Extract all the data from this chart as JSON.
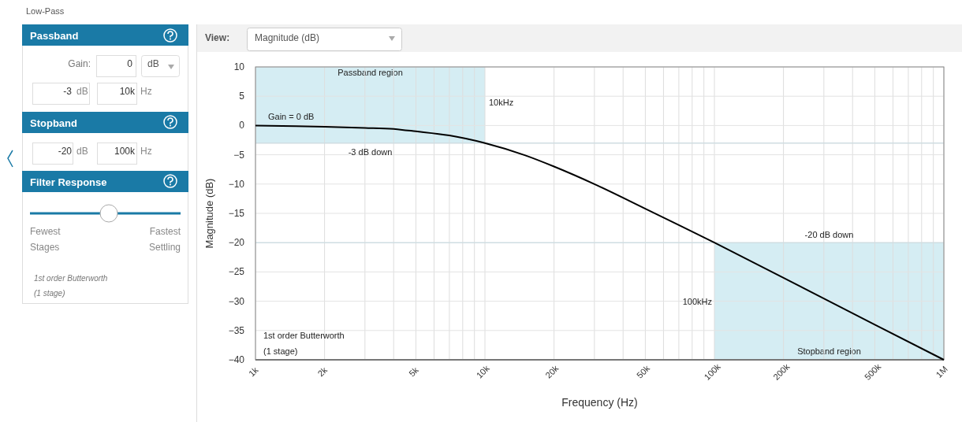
{
  "chart_data": {
    "type": "line",
    "xlabel": "Frequency (Hz)",
    "ylabel": "Magnitude (dB)",
    "log": "x",
    "grid": true,
    "marker": "none",
    "line_style": "solid",
    "x": [
      1000,
      1500,
      2000,
      3000,
      4000,
      5000,
      7000,
      10000,
      15000,
      20000,
      30000,
      50000,
      70000,
      100000,
      200000,
      500000,
      1000000
    ],
    "series": [
      {
        "color": "#000000",
        "values": [
          0,
          -0.1,
          -0.2,
          -0.4,
          -0.6,
          -1,
          -1.7,
          -3,
          -5.1,
          -7,
          -10,
          -14.2,
          -17,
          -20,
          -26,
          -34,
          -40
        ]
      }
    ],
    "xlim": [
      1000,
      1000000
    ],
    "ylim": [
      -40,
      10
    ],
    "xticks": [
      {
        "value": 1000,
        "label": "1k"
      },
      {
        "value": 2000,
        "label": "2k"
      },
      {
        "value": 3000,
        "label": null
      },
      {
        "value": 4000,
        "label": null
      },
      {
        "value": 5000,
        "label": "5k"
      },
      {
        "value": 6000,
        "label": null
      },
      {
        "value": 7000,
        "label": null
      },
      {
        "value": 8000,
        "label": null
      },
      {
        "value": 9000,
        "label": null
      },
      {
        "value": 10000,
        "label": "10k"
      },
      {
        "value": 20000,
        "label": "20k"
      },
      {
        "value": 30000,
        "label": null
      },
      {
        "value": 40000,
        "label": null
      },
      {
        "value": 50000,
        "label": "50k"
      },
      {
        "value": 60000,
        "label": null
      },
      {
        "value": 70000,
        "label": null
      },
      {
        "value": 80000,
        "label": null
      },
      {
        "value": 90000,
        "label": null
      },
      {
        "value": 100000,
        "label": "100k"
      },
      {
        "value": 200000,
        "label": "200k"
      },
      {
        "value": 300000,
        "label": null
      },
      {
        "value": 400000,
        "label": null
      },
      {
        "value": 500000,
        "label": "500k"
      },
      {
        "value": 600000,
        "label": null
      },
      {
        "value": 700000,
        "label": null
      },
      {
        "value": 800000,
        "label": null
      },
      {
        "value": 900000,
        "label": null
      },
      {
        "value": 1000000,
        "label": "1M"
      }
    ],
    "yticks": [
      10,
      5,
      0,
      {
        "value": -5,
        "label": "−5"
      },
      {
        "value": -10,
        "label": "−10"
      },
      {
        "value": -15,
        "label": "−15"
      },
      {
        "value": -20,
        "label": "−20"
      },
      {
        "value": -25,
        "label": "−25"
      },
      {
        "value": -30,
        "label": "−30"
      },
      {
        "value": -35,
        "label": "−35"
      },
      {
        "value": -40,
        "label": "−40"
      }
    ],
    "bands": [
      {
        "axis": "x",
        "from": 1000,
        "to": 10000,
        "label": "Passband region",
        "color": "#d5edf3"
      },
      {
        "axis": "x",
        "from": 100000,
        "to": 1000000,
        "label": "Stopband region",
        "color": "#d5edf3"
      }
    ],
    "ref_lines": [
      {
        "axis": "y",
        "value": -3,
        "label": "-3 dB down"
      },
      {
        "axis": "y",
        "value": -20,
        "label": "-20 dB down"
      }
    ],
    "annotations": [
      {
        "text": "Gain = 0 dB",
        "x": 1000,
        "y": 0
      },
      {
        "text": "10kHz",
        "x": 10000,
        "y": 4
      },
      {
        "text": "100kHz",
        "x": 100000,
        "y": -30
      },
      "1st order Butterworth",
      "(1 stage)",
      "Low-Pass",
      "Passband",
      "Gain:",
      "0",
      "dB",
      "-3",
      "dB",
      "10k",
      "Hz",
      "Stopband",
      "-20",
      "dB",
      "100k",
      "Hz",
      "Filter Response",
      "Fewest",
      "Stages",
      "Fastest",
      "Settling",
      "1st order Butterworth",
      "(1 stage)",
      "View:",
      "Magnitude (dB)"
    ]
  }
}
